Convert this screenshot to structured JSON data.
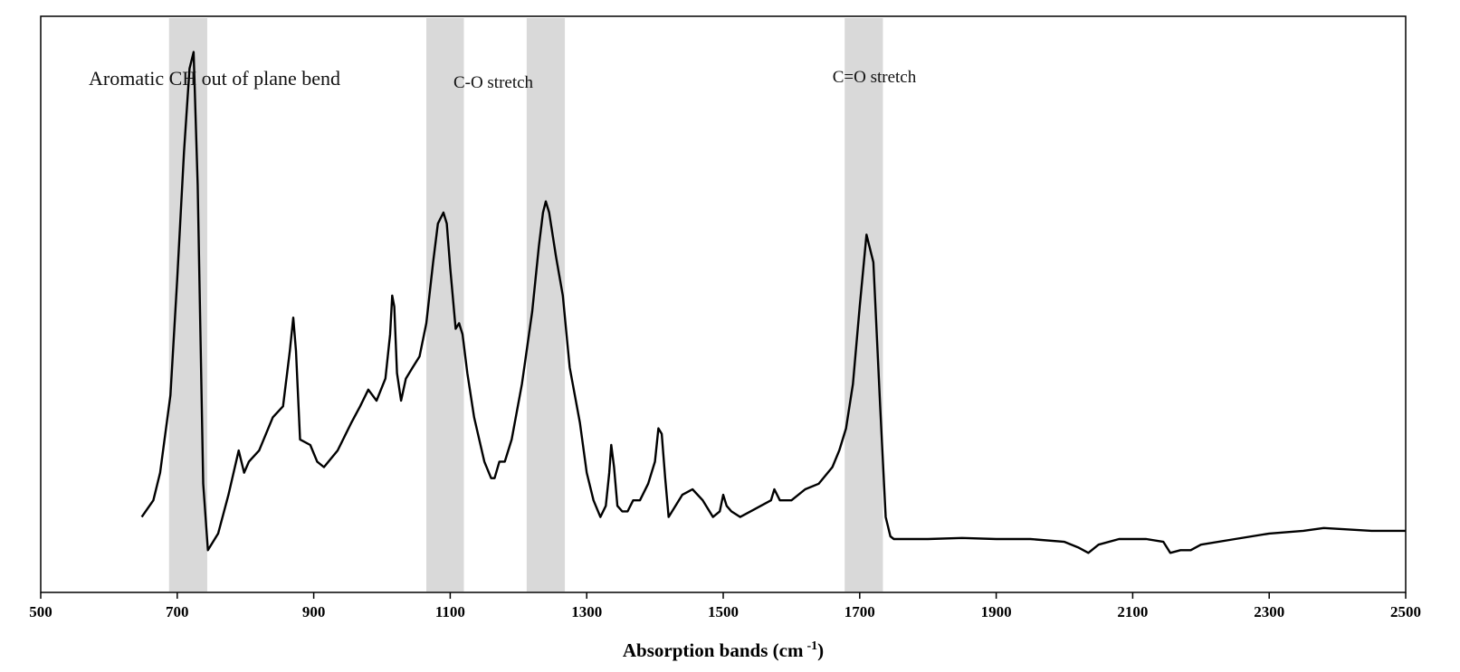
{
  "chart_data": {
    "type": "line",
    "title": "",
    "xlabel": "Absorption bands (cm",
    "xlabel_superscript": "-1",
    "xlabel_close": ")",
    "ylabel": "",
    "xlim": [
      500,
      2500
    ],
    "xticks": [
      "500",
      "700",
      "900",
      "1100",
      "1300",
      "1500",
      "1700",
      "1900",
      "2100",
      "2300",
      "2500"
    ],
    "y_axis_shown": false,
    "grid": false,
    "legend": "none",
    "colors": {
      "line": "#000000",
      "highlight": "#d9d9d9"
    },
    "highlight_bands": [
      {
        "x_range": [
          688,
          744
        ],
        "label": "Aromatic CH out of plane bend"
      },
      {
        "x_range": [
          1065,
          1120
        ],
        "label": "C-O stretch"
      },
      {
        "x_range": [
          1212,
          1268
        ],
        "label": ""
      },
      {
        "x_range": [
          1678,
          1734
        ],
        "label": "C=O stretch"
      }
    ],
    "series": [
      {
        "x": [
          648,
          665,
          675,
          690,
          700,
          710,
          718,
          724,
          730,
          738,
          745,
          760,
          775,
          790,
          798,
          805,
          820,
          840,
          855,
          865,
          870,
          874,
          880,
          895,
          905,
          915,
          935,
          955,
          968,
          980,
          992,
          1005,
          1012,
          1015,
          1018,
          1022,
          1028,
          1035,
          1045,
          1055,
          1065,
          1075,
          1082,
          1090,
          1095,
          1100,
          1108,
          1113,
          1118,
          1125,
          1135,
          1150,
          1160,
          1165,
          1172,
          1180,
          1190,
          1205,
          1220,
          1230,
          1236,
          1240,
          1245,
          1255,
          1265,
          1275,
          1290,
          1300,
          1310,
          1320,
          1328,
          1333,
          1336,
          1340,
          1345,
          1352,
          1360,
          1368,
          1378,
          1390,
          1400,
          1405,
          1410,
          1415,
          1420,
          1440,
          1455,
          1470,
          1485,
          1495,
          1500,
          1505,
          1512,
          1525,
          1540,
          1555,
          1570,
          1575,
          1583,
          1600,
          1620,
          1640,
          1660,
          1670,
          1680,
          1690,
          1700,
          1710,
          1720,
          1730,
          1738,
          1745,
          1750,
          1760,
          1800,
          1850,
          1900,
          1950,
          2000,
          2020,
          2035,
          2050,
          2080,
          2120,
          2145,
          2155,
          2170,
          2185,
          2200,
          2250,
          2300,
          2350,
          2380,
          2450,
          2500
        ],
        "y": [
          0.12,
          0.15,
          0.2,
          0.34,
          0.55,
          0.78,
          0.93,
          0.96,
          0.72,
          0.18,
          0.06,
          0.09,
          0.16,
          0.24,
          0.2,
          0.22,
          0.24,
          0.3,
          0.32,
          0.42,
          0.48,
          0.42,
          0.26,
          0.25,
          0.22,
          0.21,
          0.24,
          0.29,
          0.32,
          0.35,
          0.33,
          0.37,
          0.45,
          0.52,
          0.5,
          0.38,
          0.33,
          0.37,
          0.39,
          0.41,
          0.47,
          0.58,
          0.65,
          0.67,
          0.65,
          0.57,
          0.46,
          0.47,
          0.45,
          0.38,
          0.3,
          0.22,
          0.19,
          0.19,
          0.22,
          0.22,
          0.26,
          0.36,
          0.49,
          0.61,
          0.67,
          0.69,
          0.67,
          0.59,
          0.52,
          0.39,
          0.29,
          0.2,
          0.15,
          0.12,
          0.14,
          0.2,
          0.25,
          0.21,
          0.14,
          0.13,
          0.13,
          0.15,
          0.15,
          0.18,
          0.22,
          0.28,
          0.27,
          0.19,
          0.12,
          0.16,
          0.17,
          0.15,
          0.12,
          0.13,
          0.16,
          0.14,
          0.13,
          0.12,
          0.13,
          0.14,
          0.15,
          0.17,
          0.15,
          0.15,
          0.17,
          0.18,
          0.21,
          0.24,
          0.28,
          0.36,
          0.5,
          0.63,
          0.58,
          0.32,
          0.12,
          0.085,
          0.08,
          0.08,
          0.08,
          0.082,
          0.08,
          0.08,
          0.075,
          0.065,
          0.055,
          0.07,
          0.08,
          0.08,
          0.075,
          0.055,
          0.06,
          0.06,
          0.07,
          0.08,
          0.09,
          0.095,
          0.1,
          0.095,
          0.095
        ]
      }
    ]
  }
}
